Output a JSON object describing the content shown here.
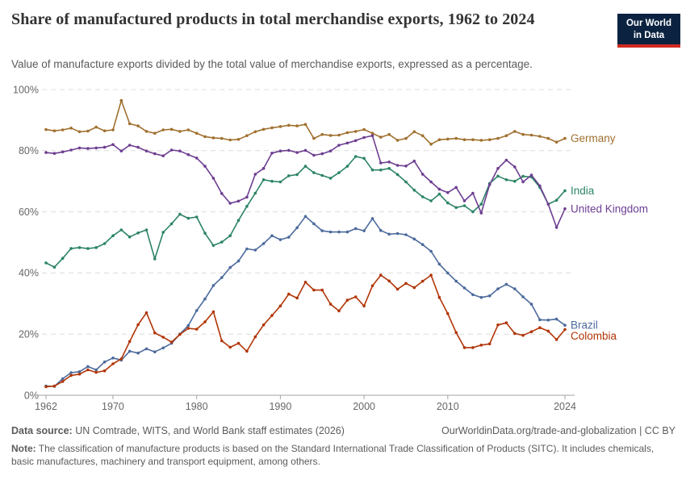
{
  "header": {
    "title": "Share of manufactured products in total merchandise exports, 1962 to 2024",
    "subtitle": "Value of manufacture exports divided by the total value of merchandise exports, expressed as a percentage.",
    "logo": {
      "line1": "Our World",
      "line2": "in Data",
      "bg_color": "#0B2341",
      "accent_color": "#D02A20"
    }
  },
  "chart_data": {
    "type": "line",
    "title": "Share of manufactured products in total merchandise exports, 1962 to 2024",
    "xlabel": "",
    "ylabel": "",
    "ylim": [
      0,
      100
    ],
    "yticks": [
      0,
      20,
      40,
      60,
      80,
      100
    ],
    "ytick_suffix": "%",
    "xticks": [
      1962,
      1970,
      1980,
      1990,
      2000,
      2010,
      2024
    ],
    "grid": "horizontal-dashed",
    "legend_position": "end-of-line-labels",
    "x": [
      1962,
      1963,
      1964,
      1965,
      1966,
      1967,
      1968,
      1969,
      1970,
      1971,
      1972,
      1973,
      1974,
      1975,
      1976,
      1977,
      1978,
      1979,
      1980,
      1981,
      1982,
      1983,
      1984,
      1985,
      1986,
      1987,
      1988,
      1989,
      1990,
      1991,
      1992,
      1993,
      1994,
      1995,
      1996,
      1997,
      1998,
      1999,
      2000,
      2001,
      2002,
      2003,
      2004,
      2005,
      2006,
      2007,
      2008,
      2009,
      2010,
      2011,
      2012,
      2013,
      2014,
      2015,
      2016,
      2017,
      2018,
      2019,
      2020,
      2021,
      2022,
      2023,
      2024
    ],
    "series": [
      {
        "name": "Germany",
        "color": "#A0702F",
        "values": [
          86.9,
          86.5,
          86.8,
          87.4,
          86.2,
          86.4,
          87.7,
          86.5,
          86.8,
          96.4,
          88.8,
          88.1,
          86.3,
          85.7,
          86.8,
          87.0,
          86.3,
          86.8,
          85.7,
          84.6,
          84.2,
          84.0,
          83.5,
          83.7,
          84.9,
          86.2,
          87.0,
          87.5,
          87.9,
          88.3,
          88.1,
          88.6,
          84.0,
          85.3,
          85.0,
          85.1,
          85.9,
          86.3,
          86.9,
          85.7,
          84.4,
          85.3,
          83.4,
          84.0,
          86.2,
          84.9,
          82.1,
          83.6,
          83.8,
          84.0,
          83.6,
          83.6,
          83.4,
          83.6,
          84.0,
          84.9,
          86.3,
          85.3,
          85.1,
          84.7,
          84.0,
          82.8,
          84.0
        ]
      },
      {
        "name": "India",
        "color": "#2C8465",
        "values": [
          43.3,
          41.9,
          44.8,
          48.0,
          48.3,
          48.0,
          48.3,
          49.6,
          52.2,
          54.1,
          51.8,
          53.1,
          54.1,
          44.6,
          53.3,
          56.1,
          59.2,
          57.9,
          58.3,
          53.0,
          49.0,
          50.1,
          52.2,
          57.2,
          61.8,
          66.1,
          70.5,
          70.0,
          69.8,
          71.8,
          72.2,
          74.9,
          72.8,
          71.9,
          71.0,
          72.8,
          74.9,
          78.1,
          77.5,
          73.7,
          73.7,
          74.2,
          72.2,
          69.8,
          67.1,
          64.9,
          63.6,
          65.8,
          62.9,
          61.4,
          62.0,
          60.0,
          62.5,
          69.3,
          71.7,
          70.5,
          70.0,
          71.6,
          71.4,
          68.0,
          62.5,
          63.8,
          66.9
        ]
      },
      {
        "name": "United Kingdom",
        "color": "#6D3E91",
        "values": [
          79.4,
          79.1,
          79.6,
          80.2,
          80.9,
          80.7,
          80.9,
          81.1,
          82.0,
          79.9,
          81.8,
          81.1,
          79.9,
          79.0,
          78.3,
          80.2,
          79.9,
          78.7,
          77.6,
          74.9,
          71.0,
          66.0,
          62.8,
          63.5,
          64.8,
          72.3,
          74.2,
          79.2,
          79.9,
          80.1,
          79.4,
          80.1,
          78.5,
          79.0,
          79.9,
          81.8,
          82.5,
          83.3,
          84.3,
          84.9,
          76.0,
          76.3,
          75.2,
          75.0,
          76.6,
          72.3,
          69.8,
          67.4,
          66.3,
          68.0,
          63.6,
          66.1,
          59.6,
          68.9,
          74.2,
          76.9,
          74.7,
          69.8,
          72.0,
          68.5,
          62.5,
          54.9,
          61.0
        ]
      },
      {
        "name": "Brazil",
        "color": "#4C6A9C",
        "values": [
          3.0,
          2.9,
          5.4,
          7.4,
          7.7,
          9.4,
          8.3,
          10.9,
          12.2,
          11.5,
          14.4,
          13.8,
          15.2,
          14.2,
          15.5,
          17.0,
          20.0,
          22.8,
          27.7,
          31.5,
          35.9,
          38.5,
          41.8,
          43.9,
          47.9,
          47.5,
          49.6,
          52.2,
          50.9,
          51.7,
          54.8,
          58.5,
          56.1,
          53.8,
          53.4,
          53.4,
          53.4,
          54.5,
          53.8,
          57.8,
          53.9,
          52.7,
          52.9,
          52.5,
          51.1,
          49.3,
          47.1,
          42.9,
          40.0,
          37.3,
          35.1,
          32.9,
          32.0,
          32.5,
          34.8,
          36.3,
          34.8,
          32.2,
          29.8,
          24.7,
          24.6,
          24.9,
          22.9
        ]
      },
      {
        "name": "Colombia",
        "color": "#B13507",
        "values": [
          2.8,
          3.0,
          4.5,
          6.5,
          6.9,
          8.3,
          7.5,
          8.0,
          10.3,
          11.9,
          17.6,
          23.1,
          27.0,
          20.4,
          19.0,
          17.4,
          19.9,
          21.9,
          21.6,
          24.0,
          27.3,
          17.8,
          15.7,
          17.0,
          14.4,
          19.1,
          23.0,
          26.1,
          29.2,
          33.1,
          31.8,
          37.0,
          34.4,
          34.4,
          29.8,
          27.6,
          31.1,
          32.2,
          29.2,
          35.8,
          39.3,
          37.4,
          34.7,
          36.6,
          35.2,
          37.3,
          39.3,
          32.0,
          26.7,
          20.5,
          15.6,
          15.6,
          16.4,
          16.8,
          23.0,
          23.7,
          20.2,
          19.6,
          20.8,
          22.1,
          21.0,
          18.2,
          21.5
        ]
      }
    ]
  },
  "footer": {
    "source_label": "Data source:",
    "source_text": " UN Comtrade, WITS, and World Bank staff estimates (2026)",
    "link_text": "OurWorldinData.org/trade-and-globalization | CC BY",
    "note_label": "Note:",
    "note_text": " The classification of manufacture products is based on the Standard International Trade Classification of Products (SITC). It includes chemicals, basic manufactures, machinery and transport equipment, among others."
  }
}
